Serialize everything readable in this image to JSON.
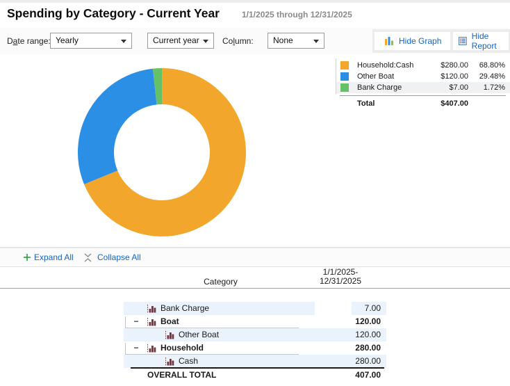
{
  "header": {
    "title": "Spending by Category - Current Year",
    "subtitle": "1/1/2025 through 12/31/2025"
  },
  "toolbar": {
    "date_range_label": [
      "D",
      "a",
      "te range:"
    ],
    "date_range_value": "Yearly",
    "period_value": "Current year",
    "column_label": [
      "Co",
      "l",
      "umn:"
    ],
    "column_value": "None",
    "hide_graph_label": "Hide Graph",
    "hide_report_label": "Hide Report"
  },
  "chart_data": {
    "type": "pie",
    "donut": true,
    "title": "Spending by Category - Current Year",
    "period": "1/1/2025 through 12/31/2025",
    "labels": [
      "Household:Cash",
      "Other Boat",
      "Bank Charge"
    ],
    "values": [
      280.0,
      120.0,
      7.0
    ],
    "percentages": [
      68.8,
      29.48,
      1.72
    ],
    "colors": [
      "#F2A62C",
      "#2B8FE6",
      "#65C168"
    ],
    "total": 407.0,
    "start_angle_deg": 0,
    "direction": "clockwise",
    "legend_position": "right"
  },
  "legend": {
    "rows": [
      {
        "label": "Household:Cash",
        "amount": "$280.00",
        "pct": "68.80%",
        "color": "#F2A62C",
        "shaded": false
      },
      {
        "label": "Other Boat",
        "amount": "$120.00",
        "pct": "29.48%",
        "color": "#2B8FE6",
        "shaded": false
      },
      {
        "label": "Bank Charge",
        "amount": "$7.00",
        "pct": "1.72%",
        "color": "#65C168",
        "shaded": true
      }
    ],
    "total_label": "Total",
    "total_amount": "$407.00"
  },
  "actions": {
    "expand_all": "Expand All",
    "collapse_all": "Collapse All",
    "toggle_glyph": "−"
  },
  "report": {
    "category_header": "Category",
    "period_header": [
      "1/1/2025-",
      "12/31/2025"
    ],
    "rows": [
      {
        "label": "Bank Charge",
        "value": "7.00",
        "level": 1,
        "bold": false,
        "shaded": true,
        "toggle": false,
        "underline": false,
        "gap": true
      },
      {
        "label": "Boat",
        "value": "120.00",
        "level": 1,
        "bold": true,
        "shaded": false,
        "toggle": true,
        "underline": true,
        "gap": false
      },
      {
        "label": "Other Boat",
        "value": "120.00",
        "level": 2,
        "bold": false,
        "shaded": true,
        "toggle": false,
        "underline": false,
        "gap": false
      },
      {
        "label": "Household",
        "value": "280.00",
        "level": 1,
        "bold": true,
        "shaded": false,
        "toggle": true,
        "underline": true,
        "gap": false
      },
      {
        "label": "Cash",
        "value": "280.00",
        "level": 2,
        "bold": false,
        "shaded": true,
        "toggle": false,
        "underline": false,
        "gap": false
      }
    ],
    "overall_total_label": "OVERALL TOTAL",
    "overall_total_value": "407.00"
  },
  "colors": {
    "link": "#1565C0",
    "row_shade": "#EAF3FB",
    "legend_shade": "#EFF1F3",
    "icon_maroon": "#6B3A40",
    "expand_plus_green": "#2F9E44",
    "donut_orange": "#F2A62C",
    "donut_blue": "#2B8FE6",
    "donut_green": "#65C168"
  }
}
